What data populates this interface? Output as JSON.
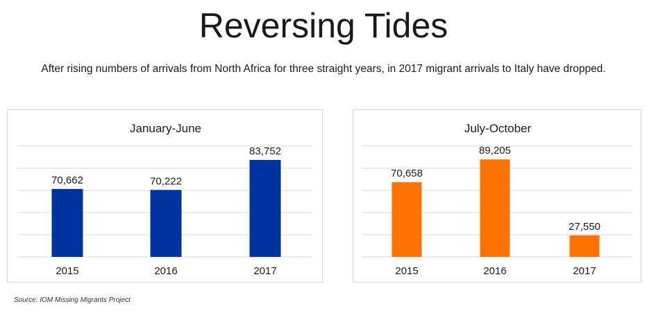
{
  "header": {
    "title": "Reversing Tides",
    "subtitle": "After rising numbers of arrivals from North Africa for three straight years, in 2017 migrant arrivals to Italy have dropped."
  },
  "footer": {
    "source": "Source: IOM Missing Migrants Project"
  },
  "chart_data": [
    {
      "type": "bar",
      "title": "January-June",
      "categories": [
        "2015",
        "2016",
        "2017"
      ],
      "values": [
        70662,
        70222,
        83752
      ],
      "value_labels": [
        "70,662",
        "70,222",
        "83,752"
      ],
      "color": "#0033a0",
      "ylim": [
        40000,
        90000
      ],
      "grid": true,
      "xlabel": "",
      "ylabel": ""
    },
    {
      "type": "bar",
      "title": "July-October",
      "categories": [
        "2015",
        "2016",
        "2017"
      ],
      "values": [
        70658,
        89205,
        27550
      ],
      "value_labels": [
        "70,658",
        "89,205",
        "27,550"
      ],
      "color": "#ff7200",
      "ylim": [
        10000,
        100000
      ],
      "grid": true,
      "xlabel": "",
      "ylabel": ""
    }
  ]
}
